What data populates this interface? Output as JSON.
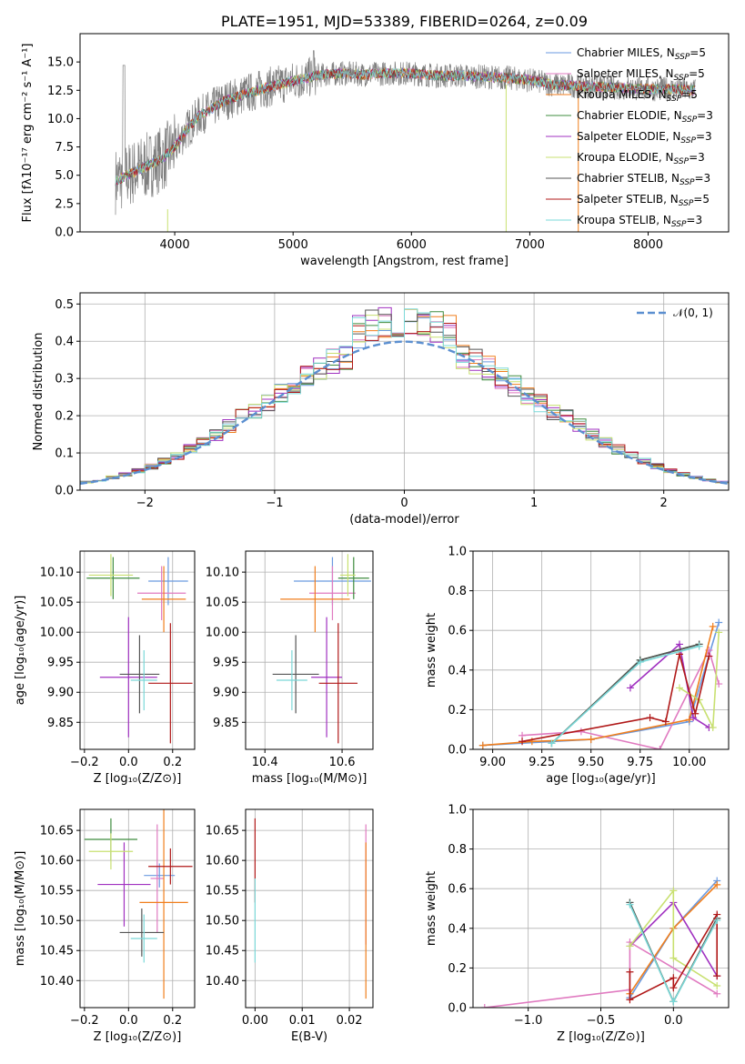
{
  "colors": {
    "Chabrier MILES": "#6a9ae0",
    "Salpeter MILES": "#e07ac0",
    "Kroupa MILES": "#f07e1c",
    "Chabrier ELODIE": "#3f8c3f",
    "Salpeter ELODIE": "#a030c0",
    "Kroupa ELODIE": "#c8e070",
    "Chabrier STELIB": "#555555",
    "Salpeter STELIB": "#b01818",
    "Kroupa STELIB": "#7ad8d8"
  },
  "chart_data": [
    {
      "id": "spectrum",
      "type": "line",
      "title": "PLATE=1951, MJD=53389, FIBERID=0264, z=0.09",
      "xlabel": "wavelength [Angstrom, rest frame]",
      "ylabel": "Flux [fλ10⁻¹⁷ erg cm⁻² s⁻¹ A⁻¹]",
      "xlim": [
        3200,
        8680
      ],
      "ylim": [
        0,
        17.5
      ],
      "xticks": [
        "4000",
        "5000",
        "6000",
        "7000",
        "8000"
      ],
      "yticks": [
        "0.0",
        "2.5",
        "5.0",
        "7.5",
        "10.0",
        "12.5",
        "15.0"
      ],
      "legend_placement": "top-right",
      "legend": [
        {
          "key": "Chabrier MILES",
          "prefix": "Chabrier MILES, N",
          "sub": "SSP",
          "suffix": "=5"
        },
        {
          "key": "Salpeter MILES",
          "prefix": "Salpeter MILES, N",
          "sub": "SSP",
          "suffix": "=5"
        },
        {
          "key": "Kroupa MILES",
          "prefix": "Kroupa MILES, N",
          "sub": "SSP",
          "suffix": "=5"
        },
        {
          "key": "Chabrier ELODIE",
          "prefix": "Chabrier ELODIE, N",
          "sub": "SSP",
          "suffix": "=3"
        },
        {
          "key": "Salpeter ELODIE",
          "prefix": "Salpeter ELODIE, N",
          "sub": "SSP",
          "suffix": "=3"
        },
        {
          "key": "Kroupa ELODIE",
          "prefix": "Kroupa ELODIE, N",
          "sub": "SSP",
          "suffix": "=3"
        },
        {
          "key": "Chabrier STELIB",
          "prefix": "Chabrier STELIB, N",
          "sub": "SSP",
          "suffix": "=3"
        },
        {
          "key": "Salpeter STELIB",
          "prefix": "Salpeter STELIB, N",
          "sub": "SSP",
          "suffix": "=5"
        },
        {
          "key": "Kroupa STELIB",
          "prefix": "Kroupa STELIB, N",
          "sub": "SSP",
          "suffix": "=3"
        }
      ],
      "data_envelope": {
        "x": [
          3500,
          3600,
          3700,
          3800,
          3900,
          4000,
          4100,
          4200,
          4300,
          4400,
          4600,
          4800,
          5000,
          5200,
          5400,
          5600,
          5800,
          6000,
          6200,
          6400,
          6600,
          6800,
          7000,
          7200,
          7400,
          7600,
          7800,
          8000,
          8200,
          8400
        ],
        "y": [
          4.5,
          5.0,
          5.5,
          6.0,
          6.5,
          7.5,
          9.0,
          10.2,
          10.8,
          11.5,
          12.2,
          12.8,
          13.3,
          13.8,
          14.0,
          13.9,
          14.0,
          14.0,
          13.8,
          13.8,
          13.7,
          13.6,
          13.4,
          13.0,
          12.9,
          12.8,
          12.7,
          12.6,
          12.6,
          12.5
        ]
      }
    },
    {
      "id": "residuals",
      "type": "line",
      "xlabel": "(data-model)/error",
      "ylabel": "Normed distribution",
      "xlim": [
        -2.5,
        2.5
      ],
      "ylim": [
        0,
        0.53
      ],
      "xticks": [
        "−2",
        "−1",
        "0",
        "1",
        "2"
      ],
      "yticks": [
        "0.0",
        "0.1",
        "0.2",
        "0.3",
        "0.4",
        "0.5"
      ],
      "legend_placement": "top-right",
      "reference_label": "𝒩(0, 1)",
      "bin_width": 0.1,
      "bin_start": -2.5
    },
    {
      "id": "age_vs_Z",
      "type": "scatter",
      "xlabel": "Z [log₁₀(Z/Z⊙)]",
      "ylabel": "age [log₁₀(age/yr)]",
      "xlim": [
        -0.22,
        0.3
      ],
      "ylim": [
        9.805,
        10.135
      ],
      "xticks": [
        "−0.2",
        "0.0",
        "0.2"
      ],
      "yticks": [
        "9.85",
        "9.90",
        "9.95",
        "10.00",
        "10.05",
        "10.10"
      ],
      "points": [
        {
          "series": "Chabrier MILES",
          "x": 0.18,
          "xerr": 0.09,
          "y": 10.085,
          "yerr": 0.04
        },
        {
          "series": "Salpeter MILES",
          "x": 0.15,
          "xerr": 0.11,
          "y": 10.065,
          "yerr": 0.045
        },
        {
          "series": "Kroupa MILES",
          "x": 0.16,
          "xerr": 0.1,
          "y": 10.055,
          "yerr": 0.055
        },
        {
          "series": "Chabrier ELODIE",
          "x": -0.07,
          "xerr": 0.12,
          "y": 10.09,
          "yerr": 0.035
        },
        {
          "series": "Salpeter ELODIE",
          "x": 0.0,
          "xerr": 0.13,
          "y": 9.925,
          "yerr": 0.1
        },
        {
          "series": "Kroupa ELODIE",
          "x": -0.08,
          "xerr": 0.1,
          "y": 10.095,
          "yerr": 0.035
        },
        {
          "series": "Chabrier STELIB",
          "x": 0.05,
          "xerr": 0.09,
          "y": 9.93,
          "yerr": 0.065
        },
        {
          "series": "Salpeter STELIB",
          "x": 0.19,
          "xerr": 0.1,
          "y": 9.915,
          "yerr": 0.1
        },
        {
          "series": "Kroupa STELIB",
          "x": 0.07,
          "xerr": 0.06,
          "y": 9.92,
          "yerr": 0.05
        }
      ]
    },
    {
      "id": "age_vs_mass",
      "type": "scatter",
      "xlabel": "mass [log₁₀(M/M⊙)]",
      "ylabel": "",
      "xlim": [
        10.35,
        10.68
      ],
      "ylim": [
        9.805,
        10.135
      ],
      "xticks": [
        "10.4",
        "10.6"
      ],
      "yticks": [
        "9.85",
        "9.90",
        "9.95",
        "10.00",
        "10.05",
        "10.10"
      ],
      "points": [
        {
          "series": "Chabrier MILES",
          "x": 10.575,
          "xerr": 0.1,
          "y": 10.085,
          "yerr": 0.04
        },
        {
          "series": "Salpeter MILES",
          "x": 10.575,
          "xerr": 0.06,
          "y": 10.065,
          "yerr": 0.045
        },
        {
          "series": "Kroupa MILES",
          "x": 10.53,
          "xerr": 0.09,
          "y": 10.055,
          "yerr": 0.055
        },
        {
          "series": "Chabrier ELODIE",
          "x": 10.63,
          "xerr": 0.04,
          "y": 10.09,
          "yerr": 0.035
        },
        {
          "series": "Salpeter ELODIE",
          "x": 10.56,
          "xerr": 0.04,
          "y": 9.925,
          "yerr": 0.1
        },
        {
          "series": "Kroupa ELODIE",
          "x": 10.615,
          "xerr": 0.02,
          "y": 10.095,
          "yerr": 0.035
        },
        {
          "series": "Chabrier STELIB",
          "x": 10.48,
          "xerr": 0.06,
          "y": 9.93,
          "yerr": 0.065
        },
        {
          "series": "Salpeter STELIB",
          "x": 10.59,
          "xerr": 0.05,
          "y": 9.915,
          "yerr": 0.1
        },
        {
          "series": "Kroupa STELIB",
          "x": 10.47,
          "xerr": 0.04,
          "y": 9.92,
          "yerr": 0.05
        }
      ]
    },
    {
      "id": "weight_vs_age",
      "type": "line",
      "xlabel": "age  [log₁₀(age/yr)]",
      "ylabel": "mass weight",
      "xlim": [
        8.9,
        10.2
      ],
      "ylim": [
        0,
        1.0
      ],
      "xticks": [
        "9.00",
        "9.25",
        "9.50",
        "9.75",
        "10.00"
      ],
      "yticks": [
        "0.0",
        "0.2",
        "0.4",
        "0.6",
        "0.8",
        "1.0"
      ],
      "series": [
        {
          "name": "Chabrier MILES",
          "x": [
            8.95,
            9.5,
            10.0,
            10.15
          ],
          "y": [
            0.02,
            0.05,
            0.14,
            0.64
          ]
        },
        {
          "name": "Salpeter MILES",
          "x": [
            9.15,
            9.45,
            9.85,
            10.1,
            10.15
          ],
          "y": [
            0.07,
            0.09,
            0.0,
            0.5,
            0.33
          ]
        },
        {
          "name": "Kroupa MILES",
          "x": [
            8.95,
            9.2,
            9.5,
            10.0,
            10.12
          ],
          "y": [
            0.02,
            0.04,
            0.05,
            0.15,
            0.62
          ]
        },
        {
          "name": "Chabrier ELODIE",
          "x": [
            9.3,
            9.75,
            10.05
          ],
          "y": [
            0.03,
            0.45,
            0.53
          ]
        },
        {
          "name": "Salpeter ELODIE",
          "x": [
            9.7,
            9.95,
            10.02,
            10.1
          ],
          "y": [
            0.31,
            0.53,
            0.16,
            0.11
          ]
        },
        {
          "name": "Kroupa ELODIE",
          "x": [
            9.95,
            10.05,
            10.12,
            10.15
          ],
          "y": [
            0.31,
            0.25,
            0.11,
            0.59
          ]
        },
        {
          "name": "Chabrier STELIB",
          "x": [
            9.3,
            9.75,
            10.05
          ],
          "y": [
            0.03,
            0.45,
            0.53
          ]
        },
        {
          "name": "Salpeter STELIB",
          "x": [
            9.15,
            9.8,
            9.88,
            9.95,
            10.03,
            10.1
          ],
          "y": [
            0.04,
            0.16,
            0.14,
            0.48,
            0.18,
            0.47
          ]
        },
        {
          "name": "Kroupa STELIB",
          "x": [
            9.3,
            9.75,
            10.05
          ],
          "y": [
            0.03,
            0.44,
            0.52
          ]
        }
      ]
    },
    {
      "id": "mass_vs_Z",
      "type": "scatter",
      "xlabel": "Z [log₁₀(Z/Z⊙)]",
      "ylabel": "mass [log₁₀(M/M⊙)]",
      "xlim": [
        -0.22,
        0.3
      ],
      "ylim": [
        10.355,
        10.685
      ],
      "xticks": [
        "−0.2",
        "0.0",
        "0.2"
      ],
      "yticks": [
        "10.40",
        "10.45",
        "10.50",
        "10.55",
        "10.60",
        "10.65"
      ],
      "points": [
        {
          "series": "Chabrier MILES",
          "x": 0.14,
          "xerr": 0.07,
          "y": 10.575,
          "yerr": 0.02
        },
        {
          "series": "Salpeter MILES",
          "x": 0.13,
          "xerr": 0.03,
          "y": 10.57,
          "yerr": 0.09
        },
        {
          "series": "Kroupa MILES",
          "x": 0.16,
          "xerr": 0.11,
          "y": 10.53,
          "yerr": 0.16
        },
        {
          "series": "Chabrier ELODIE",
          "x": -0.08,
          "xerr": 0.12,
          "y": 10.635,
          "yerr": 0.035
        },
        {
          "series": "Salpeter ELODIE",
          "x": -0.02,
          "xerr": 0.12,
          "y": 10.56,
          "yerr": 0.07
        },
        {
          "series": "Kroupa ELODIE",
          "x": -0.08,
          "xerr": 0.1,
          "y": 10.615,
          "yerr": 0.03
        },
        {
          "series": "Chabrier STELIB",
          "x": 0.06,
          "xerr": 0.1,
          "y": 10.48,
          "yerr": 0.04
        },
        {
          "series": "Salpeter STELIB",
          "x": 0.19,
          "xerr": 0.1,
          "y": 10.59,
          "yerr": 0.03
        },
        {
          "series": "Kroupa STELIB",
          "x": 0.07,
          "xerr": 0.06,
          "y": 10.47,
          "yerr": 0.04
        }
      ]
    },
    {
      "id": "mass_vs_ebv",
      "type": "scatter",
      "xlabel": "E(B-V)",
      "ylabel": "",
      "xlim": [
        -0.002,
        0.025
      ],
      "ylim": [
        10.355,
        10.685
      ],
      "xticks": [
        "0.00",
        "0.01",
        "0.02"
      ],
      "yticks": [
        "10.40",
        "10.45",
        "10.50",
        "10.55",
        "10.60",
        "10.65"
      ],
      "points": [
        {
          "series": "Salpeter MILES",
          "x": 0.0235,
          "y": 10.56,
          "yerr": 0.1
        },
        {
          "series": "Kroupa MILES",
          "x": 0.0235,
          "y": 10.5,
          "yerr": 0.13
        },
        {
          "series": "Salpeter STELIB",
          "x": 0.0,
          "y": 10.6,
          "yerr": 0.07
        },
        {
          "series": "Kroupa STELIB",
          "x": 0.0,
          "y": 10.5,
          "yerr": 0.07
        }
      ]
    },
    {
      "id": "weight_vs_Z",
      "type": "line",
      "xlabel": "Z [log₁₀(Z/Z⊙)]",
      "ylabel": "mass weight",
      "xlim": [
        -1.38,
        0.38
      ],
      "ylim": [
        0,
        1.0
      ],
      "xticks": [
        "−1.0",
        "−0.5",
        "0.0"
      ],
      "yticks": [
        "0.0",
        "0.2",
        "0.4",
        "0.6",
        "0.8",
        "1.0"
      ],
      "series": [
        {
          "name": "Chabrier MILES",
          "x": [
            -0.3,
            0.0,
            0.3
          ],
          "y": [
            0.05,
            0.4,
            0.64
          ]
        },
        {
          "name": "Salpeter MILES",
          "x": [
            -1.3,
            -0.3,
            -0.3,
            0.3
          ],
          "y": [
            0.0,
            0.09,
            0.33,
            0.07
          ]
        },
        {
          "name": "Kroupa MILES",
          "x": [
            -0.3,
            0.0,
            0.3
          ],
          "y": [
            0.07,
            0.4,
            0.62
          ]
        },
        {
          "name": "Chabrier ELODIE",
          "x": [
            -0.3,
            0.0,
            0.3
          ],
          "y": [
            0.53,
            0.03,
            0.45
          ]
        },
        {
          "name": "Salpeter ELODIE",
          "x": [
            -0.3,
            0.0,
            0.3
          ],
          "y": [
            0.31,
            0.53,
            0.16
          ]
        },
        {
          "name": "Kroupa ELODIE",
          "x": [
            -0.3,
            0.0,
            0.0,
            0.3
          ],
          "y": [
            0.31,
            0.59,
            0.25,
            0.11
          ]
        },
        {
          "name": "Chabrier STELIB",
          "x": [
            -0.3,
            0.0,
            0.3
          ],
          "y": [
            0.53,
            0.03,
            0.45
          ]
        },
        {
          "name": "Salpeter STELIB",
          "x": [
            -0.3,
            -0.3,
            0.0,
            0.0,
            0.3,
            0.3
          ],
          "y": [
            0.18,
            0.04,
            0.15,
            0.1,
            0.47,
            0.16
          ]
        },
        {
          "name": "Kroupa STELIB",
          "x": [
            -0.3,
            0.0,
            0.3
          ],
          "y": [
            0.52,
            0.03,
            0.44
          ]
        }
      ]
    }
  ]
}
